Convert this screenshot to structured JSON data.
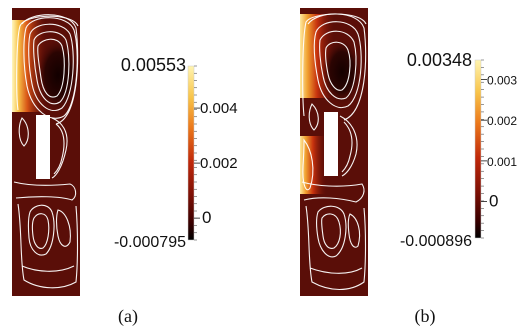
{
  "chart_data": [
    {
      "type": "heatmap",
      "panel_label": "(a)",
      "colorbar": {
        "max_label": "0.00553",
        "min_label": "-0.000795",
        "range": [
          -0.000795,
          0.00553
        ],
        "ticks": [
          {
            "value": 0.004,
            "label": "0.004"
          },
          {
            "value": 0.002,
            "label": "0.002"
          },
          {
            "value": 0,
            "label": "0"
          }
        ]
      },
      "colormap": [
        "#000000",
        "#3a0000",
        "#7a0f05",
        "#c0280a",
        "#ec7a1c",
        "#f8c44a",
        "#fff4b0"
      ],
      "background_color": "#5a0e08",
      "hot_region": "upper-left wall",
      "streamlines": "white"
    },
    {
      "type": "heatmap",
      "panel_label": "(b)",
      "colorbar": {
        "max_label": "0.00348",
        "min_label": "-0.000896",
        "range": [
          -0.000896,
          0.00348
        ],
        "ticks": [
          {
            "value": 0.003,
            "label": "0.003"
          },
          {
            "value": 0.002,
            "label": "0.002"
          },
          {
            "value": 0.001,
            "label": "0.001"
          },
          {
            "value": 0,
            "label": "0"
          }
        ]
      },
      "colormap": [
        "#000000",
        "#3a0000",
        "#7a0f05",
        "#c0280a",
        "#ec7a1c",
        "#f8c44a",
        "#fff4b0"
      ],
      "background_color": "#5a0e08",
      "hot_region": "upper-left and middle-left wall",
      "streamlines": "white"
    }
  ]
}
